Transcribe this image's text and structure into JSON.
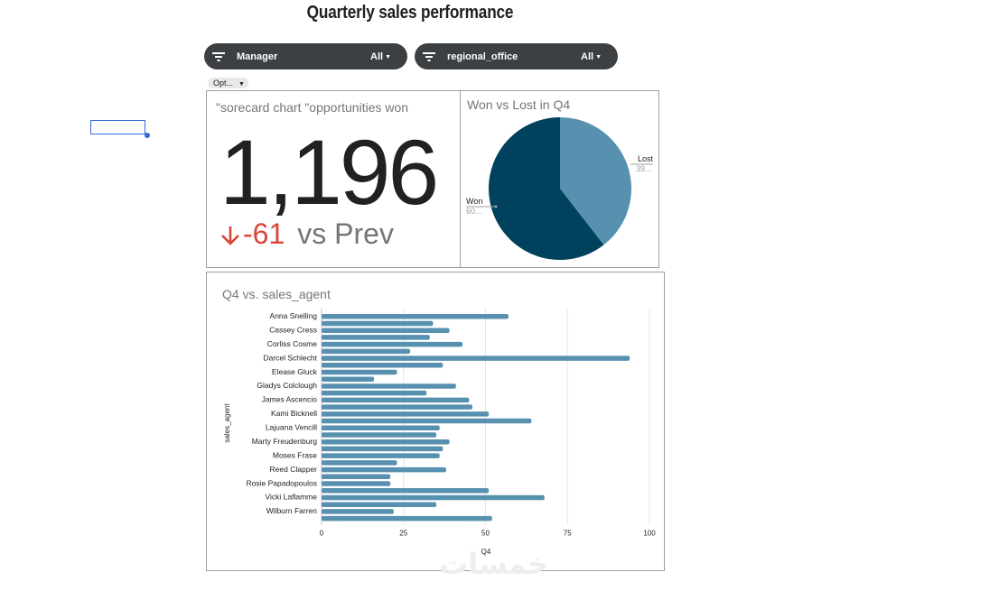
{
  "page_title": "Quarterly sales performance",
  "filters": [
    {
      "name": "Manager",
      "value": "All"
    },
    {
      "name": "regional_office",
      "value": "All"
    }
  ],
  "options_chip": "Opt...",
  "scorecard": {
    "title": "\"sorecard chart \"opportunities won",
    "value": "1,196",
    "delta": "-61",
    "delta_label": "vs Prev",
    "delta_color": "#db4437"
  },
  "pie_chart": {
    "title": "Won vs Lost in Q4",
    "labels": [
      {
        "name": "Lost",
        "pct": "39..."
      },
      {
        "name": "Won",
        "pct": "60..."
      }
    ]
  },
  "bar_chart": {
    "title": "Q4 vs. sales_agent"
  },
  "chart_data": [
    {
      "type": "pie",
      "title": "Won vs Lost in Q4",
      "slices": [
        {
          "name": "Won",
          "value": 60.5,
          "color": "#00425e"
        },
        {
          "name": "Lost",
          "value": 39.5,
          "color": "#5891b0"
        }
      ]
    },
    {
      "type": "bar",
      "orientation": "horizontal",
      "title": "Q4 vs. sales_agent",
      "xlabel": "Q4",
      "ylabel": "sales_agent",
      "xlim": [
        0,
        100
      ],
      "xticks": [
        "0",
        "25",
        "50",
        "75",
        "100"
      ],
      "bar_color": "#5891b0",
      "categories": [
        "Anna Snelling",
        "",
        "Cassey Cress",
        "",
        "Corliss Cosme",
        "",
        "Darcel Schlecht",
        "",
        "Elease Gluck",
        "",
        "Gladys Colclough",
        "",
        "James Ascencio",
        "",
        "Kami Bicknell",
        "",
        "Lajuana Vencill",
        "",
        "Marty Freudenburg",
        "",
        "Moses Frase",
        "",
        "Reed Clapper",
        "",
        "Rosie Papadopoulos",
        "",
        "Vicki Laflamme",
        "",
        "Wilburn Farren",
        ""
      ],
      "values": [
        57,
        34,
        39,
        33,
        43,
        27,
        94,
        37,
        23,
        16,
        41,
        32,
        45,
        46,
        51,
        64,
        36,
        35,
        39,
        37,
        36,
        23,
        38,
        21,
        21,
        51,
        68,
        35,
        22,
        52
      ]
    }
  ],
  "watermark": "خمسات"
}
